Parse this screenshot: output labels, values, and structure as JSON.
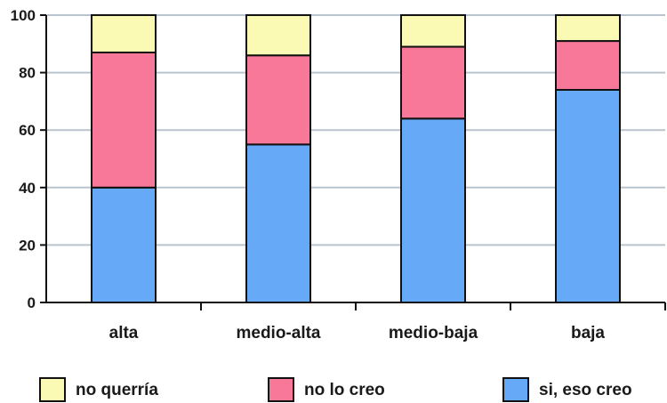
{
  "chart_data": {
    "type": "bar",
    "stacked": true,
    "categories": [
      "alta",
      "medio-alta",
      "medio-baja",
      "baja"
    ],
    "series": [
      {
        "name": "si, eso creo",
        "color": "#66aaf7",
        "values": [
          40,
          55,
          64,
          74
        ]
      },
      {
        "name": "no lo creo",
        "color": "#f77899",
        "values": [
          47,
          31,
          25,
          17
        ]
      },
      {
        "name": "no querría",
        "color": "#fafab4",
        "values": [
          13,
          14,
          11,
          9
        ]
      }
    ],
    "ylim": [
      0,
      100
    ],
    "yticks": [
      0,
      20,
      40,
      60,
      80,
      100
    ],
    "grid": true,
    "grid_color": "#b9c4ce",
    "legend_order": [
      "no querría",
      "no lo creo",
      "si, eso creo"
    ],
    "legend_position": "bottom"
  }
}
